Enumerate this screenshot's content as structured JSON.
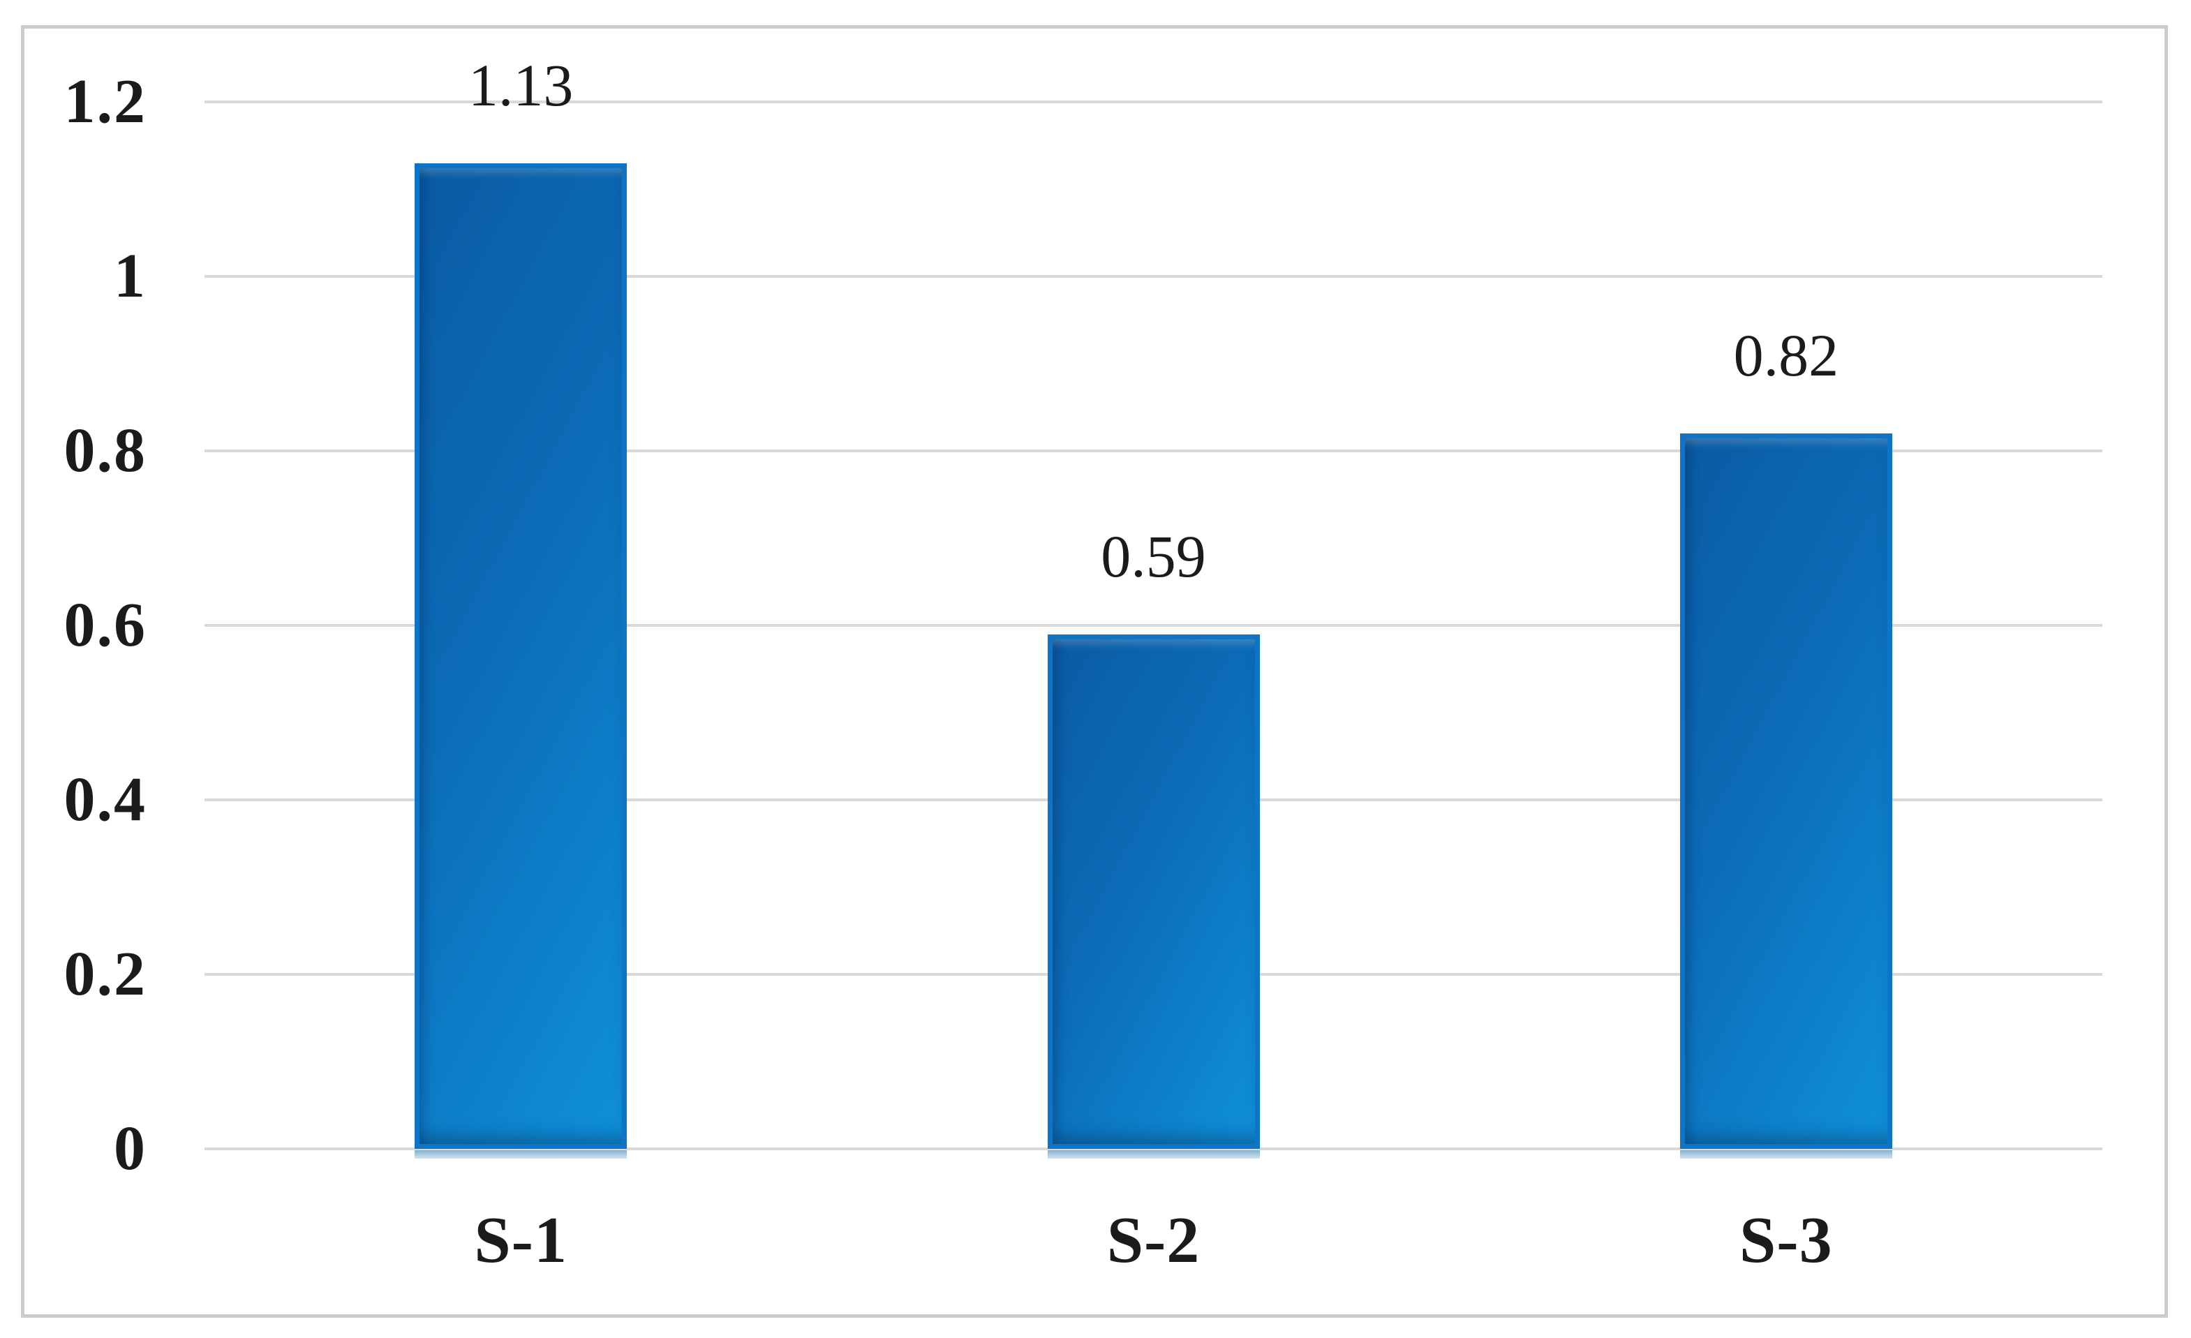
{
  "chart_data": {
    "type": "bar",
    "categories": [
      "S-1",
      "S-2",
      "S-3"
    ],
    "values": [
      1.13,
      0.59,
      0.82
    ],
    "value_labels": [
      "1.13",
      "0.59",
      "0.82"
    ],
    "title": "",
    "xlabel": "",
    "ylabel": "",
    "ylim": [
      0,
      1.2
    ],
    "ytick_step": 0.2,
    "ytick_labels": [
      "0",
      "0.2",
      "0.4",
      "0.6",
      "0.8",
      "1",
      "1.2"
    ],
    "grid": true,
    "legend_position": "none",
    "colors": {
      "bar_fill_dark": "#0a5ba3",
      "bar_fill_mid": "#0c6cb8",
      "bar_fill_light": "#0f90d9",
      "bar_border": "#0e74c8",
      "bar_base_reflection_top": "#5f96bd",
      "bar_base_reflection_bottom": "#c2d9ea",
      "gridline": "#d9d9d9",
      "frame_border": "#c9cdd0",
      "text": "#1b1b1b",
      "background": "#ffffff"
    }
  }
}
